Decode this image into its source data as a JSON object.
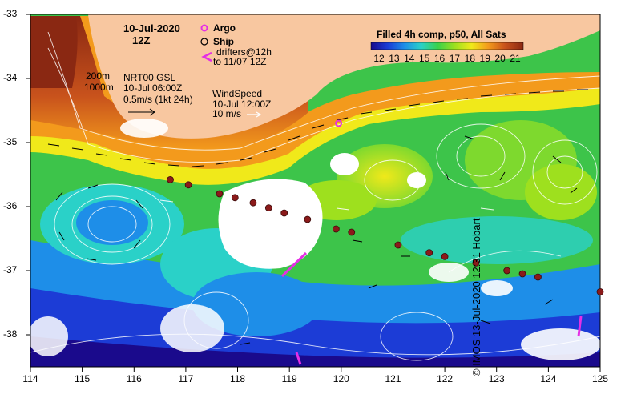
{
  "header": {
    "date": "10-Jul-2020",
    "hour": "12Z"
  },
  "legend": {
    "argo": "Argo",
    "ship": "Ship",
    "drifters_line1": "drifters@12h",
    "drifters_line2": "to 11/07 12Z",
    "argo_color": "#e52fe5",
    "drifter_color": "#e52fe5"
  },
  "annotations": {
    "depth_200": "200m",
    "depth_1000": "1000m",
    "nrt_title": "NRT00 GSL",
    "nrt_time": "10-Jul 06:00Z",
    "current_scale": "0.5m/s (1kt 24h)",
    "wind_title": "WindSpeed",
    "wind_time": "10-Jul 12:00Z",
    "wind_scale": "10 m/s"
  },
  "colorbar": {
    "title": "Filled 4h comp, p50, All Sats",
    "ticks": [
      "12",
      "13",
      "14",
      "15",
      "16",
      "17",
      "18",
      "19",
      "20",
      "21"
    ],
    "colors": [
      "#1a0a8c",
      "#1c3cd6",
      "#1e8ee8",
      "#2ad1c8",
      "#39d14a",
      "#9ee01e",
      "#f0e91a",
      "#f39a1c",
      "#c8521c",
      "#8a2812"
    ]
  },
  "axes": {
    "x_ticks": [
      "114",
      "115",
      "116",
      "117",
      "118",
      "119",
      "120",
      "121",
      "122",
      "123",
      "124",
      "125"
    ],
    "y_ticks": [
      "-33",
      "-34",
      "-35",
      "-36",
      "-37",
      "-38"
    ],
    "xlim": [
      114,
      125
    ],
    "ylim": [
      -38.5,
      -33
    ]
  },
  "ship_stations": [
    {
      "lon": 116.7,
      "lat": -35.58
    },
    {
      "lon": 117.05,
      "lat": -35.66
    },
    {
      "lon": 117.65,
      "lat": -35.8
    },
    {
      "lon": 117.95,
      "lat": -35.86
    },
    {
      "lon": 118.3,
      "lat": -35.94
    },
    {
      "lon": 118.6,
      "lat": -36.02
    },
    {
      "lon": 118.9,
      "lat": -36.1
    },
    {
      "lon": 119.35,
      "lat": -36.2
    },
    {
      "lon": 119.9,
      "lat": -36.35
    },
    {
      "lon": 120.2,
      "lat": -36.4
    },
    {
      "lon": 121.1,
      "lat": -36.6
    },
    {
      "lon": 121.7,
      "lat": -36.72
    },
    {
      "lon": 122.0,
      "lat": -36.78
    },
    {
      "lon": 122.6,
      "lat": -36.88
    },
    {
      "lon": 123.2,
      "lat": -37.0
    },
    {
      "lon": 123.5,
      "lat": -37.05
    },
    {
      "lon": 123.8,
      "lat": -37.1
    },
    {
      "lon": 125.0,
      "lat": -37.33
    }
  ],
  "argo_floats": [
    {
      "lon": 119.95,
      "lat": -34.7
    }
  ],
  "credit": "© IMOS 13-Jul-2020 12:31 Hobart"
}
